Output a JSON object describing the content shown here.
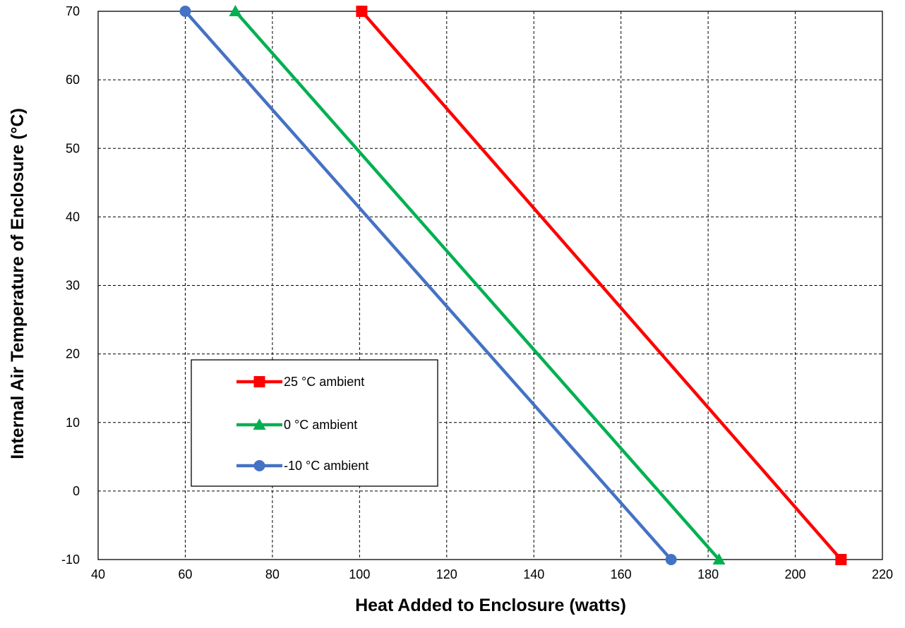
{
  "chart_data": {
    "type": "line",
    "title": "",
    "xlabel": "Heat Added to Enclosure (watts)",
    "ylabel": "Internal Air Temperature of Enclosure (°C)",
    "xlim": [
      40,
      220
    ],
    "ylim": [
      -10,
      70
    ],
    "xticks": [
      40,
      60,
      80,
      100,
      120,
      140,
      160,
      180,
      200,
      220
    ],
    "yticks": [
      -10,
      0,
      10,
      20,
      30,
      40,
      50,
      60,
      70
    ],
    "grid": true,
    "legend_position": "lower-left",
    "series": [
      {
        "name": "25 °C ambient",
        "color": "#ff0000",
        "marker": "square",
        "x": [
          100.5,
          210.5
        ],
        "y": [
          70,
          -10
        ]
      },
      {
        "name": "0 °C ambient",
        "color": "#00b050",
        "marker": "triangle",
        "x": [
          71.5,
          182.5
        ],
        "y": [
          70,
          -10
        ]
      },
      {
        "name": "-10 °C ambient",
        "color": "#4472c4",
        "marker": "circle",
        "x": [
          60,
          171.5
        ],
        "y": [
          70,
          -10
        ]
      }
    ]
  }
}
